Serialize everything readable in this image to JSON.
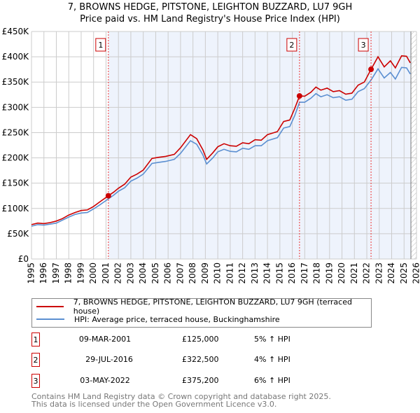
{
  "title_line1": "7, BROWNS HEDGE, PITSTONE, LEIGHTON BUZZARD, LU7 9GH",
  "title_line2": "Price paid vs. HM Land Registry's House Price Index (HPI)",
  "chart_data": {
    "type": "line",
    "xlim": [
      1995,
      2026
    ],
    "ylim": [
      0,
      450000
    ],
    "yticks": [
      0,
      50000,
      100000,
      150000,
      200000,
      250000,
      300000,
      350000,
      400000,
      450000
    ],
    "ytick_labels": [
      "£0",
      "£50K",
      "£100K",
      "£150K",
      "£200K",
      "£250K",
      "£300K",
      "£350K",
      "£400K",
      "£450K"
    ],
    "xticks": [
      1995,
      1996,
      1997,
      1998,
      1999,
      2000,
      2001,
      2002,
      2003,
      2004,
      2005,
      2006,
      2007,
      2008,
      2009,
      2010,
      2011,
      2012,
      2013,
      2014,
      2015,
      2016,
      2017,
      2018,
      2019,
      2020,
      2021,
      2022,
      2023,
      2024,
      2025,
      2026
    ],
    "grid": true,
    "colors": {
      "property": "#cc0000",
      "hpi": "#5b8fd1",
      "shade": "#eef3fc",
      "marker": "#cc0000"
    },
    "shaded_from": 2001.19,
    "future_from": 2025.55,
    "series": [
      {
        "name": "7, BROWNS HEDGE, PITSTONE, LEIGHTON BUZZARD, LU7 9GH (terraced house)",
        "x": [
          1995,
          1995.5,
          1996,
          1996.5,
          1997,
          1997.5,
          1998,
          1998.5,
          1999,
          1999.5,
          2000,
          2000.5,
          2001.19,
          2001.6,
          2002,
          2002.5,
          2003,
          2003.5,
          2004,
          2004.7,
          2005.2,
          2005.8,
          2006.5,
          2007,
          2007.8,
          2008.3,
          2008.8,
          2009.1,
          2009.6,
          2010,
          2010.5,
          2011,
          2011.5,
          2012,
          2012.5,
          2013,
          2013.5,
          2014,
          2014.8,
          2015.3,
          2015.8,
          2016.2,
          2016.58,
          2017,
          2017.5,
          2017.9,
          2018.3,
          2018.8,
          2019.3,
          2019.8,
          2020.3,
          2020.8,
          2021.3,
          2021.8,
          2022.34,
          2022.9,
          2023.4,
          2023.9,
          2024.3,
          2024.8,
          2025.2,
          2025.5
        ],
        "values": [
          68000,
          71000,
          70000,
          72000,
          75000,
          80000,
          87000,
          92000,
          96000,
          97000,
          104000,
          113000,
          125000,
          132000,
          140000,
          148000,
          162000,
          168000,
          176000,
          199000,
          201000,
          203000,
          207000,
          220000,
          246000,
          238000,
          216000,
          197000,
          210000,
          222000,
          228000,
          224000,
          223000,
          230000,
          228000,
          236000,
          235000,
          246000,
          252000,
          272000,
          275000,
          298000,
          322500,
          322000,
          330000,
          340000,
          334000,
          338000,
          331000,
          333000,
          326000,
          328000,
          344000,
          350000,
          375200,
          400000,
          380000,
          392000,
          378000,
          402000,
          401000,
          388000
        ]
      },
      {
        "name": "HPI: Average price, terraced house, Buckinghamshire",
        "x": [
          1995,
          1995.5,
          1996,
          1996.5,
          1997,
          1997.5,
          1998,
          1998.5,
          1999,
          1999.5,
          2000,
          2000.5,
          2001.19,
          2001.6,
          2002,
          2002.5,
          2003,
          2003.5,
          2004,
          2004.7,
          2005.2,
          2005.8,
          2006.5,
          2007,
          2007.8,
          2008.3,
          2008.8,
          2009.1,
          2009.6,
          2010,
          2010.5,
          2011,
          2011.5,
          2012,
          2012.5,
          2013,
          2013.5,
          2014,
          2014.8,
          2015.3,
          2015.8,
          2016.2,
          2016.58,
          2017,
          2017.5,
          2017.9,
          2018.3,
          2018.8,
          2019.3,
          2019.8,
          2020.3,
          2020.8,
          2021.3,
          2021.8,
          2022.34,
          2022.9,
          2023.4,
          2023.9,
          2024.3,
          2024.8,
          2025.2,
          2025.5
        ],
        "values": [
          65000,
          68000,
          67000,
          69000,
          71000,
          77000,
          83000,
          88000,
          91000,
          92000,
          99000,
          107000,
          119000,
          126000,
          134000,
          141000,
          154000,
          160000,
          168000,
          189000,
          191000,
          193000,
          197000,
          209000,
          234000,
          227000,
          206000,
          188000,
          200000,
          212000,
          217000,
          213000,
          212000,
          219000,
          217000,
          224000,
          224000,
          234000,
          240000,
          259000,
          262000,
          284000,
          310000,
          310000,
          318000,
          327000,
          321000,
          325000,
          319000,
          321000,
          314000,
          316000,
          331000,
          337000,
          354000,
          376000,
          358000,
          369000,
          356000,
          379000,
          378000,
          366000
        ]
      }
    ],
    "sales": [
      {
        "label": "1",
        "x": 2001.19,
        "value": 125000,
        "date": "09-MAR-2001",
        "price": "£125,000",
        "hpi": "5% ↑ HPI"
      },
      {
        "label": "2",
        "x": 2016.58,
        "value": 322500,
        "date": "29-JUL-2016",
        "price": "£322,500",
        "hpi": "4% ↑ HPI"
      },
      {
        "label": "3",
        "x": 2022.34,
        "value": 375200,
        "date": "03-MAY-2022",
        "price": "£375,200",
        "hpi": "6% ↑ HPI"
      }
    ]
  },
  "legend": {
    "property": "7, BROWNS HEDGE, PITSTONE, LEIGHTON BUZZARD, LU7 9GH (terraced house)",
    "hpi": "HPI: Average price, terraced house, Buckinghamshire"
  },
  "footer": {
    "line1": "Contains HM Land Registry data © Crown copyright and database right 2025.",
    "line2": "This data is licensed under the Open Government Licence v3.0."
  }
}
